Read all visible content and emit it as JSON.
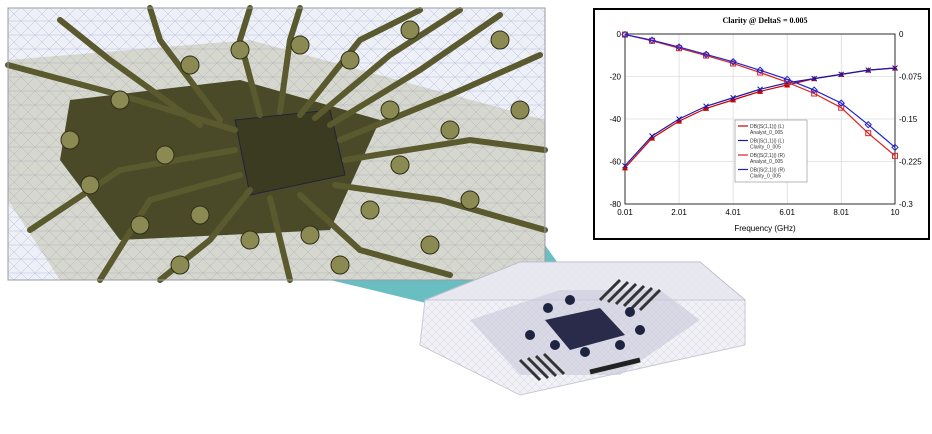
{
  "illustration": {
    "description_icons": [
      "pcb-closeup-view",
      "package-3d-model",
      "magnifier-callout"
    ]
  },
  "chart_data": {
    "type": "line",
    "title": "Clarity @ DeltaS = 0.005",
    "xlabel": "Frequency (GHz)",
    "ylabel": "",
    "y2label": "",
    "xlim": [
      0.01,
      10
    ],
    "ylim": [
      -80,
      0
    ],
    "y2lim": [
      -0.3,
      0
    ],
    "x_ticks": [
      "0.01",
      "2.01",
      "4.01",
      "6.01",
      "8.01",
      "10"
    ],
    "y_ticks": [
      "0",
      "-20",
      "-40",
      "-60",
      "-80"
    ],
    "y2_ticks": [
      "0",
      "-0.075",
      "-0.15",
      "-0.225",
      "-0.3"
    ],
    "grid": true,
    "legend_position": "lower-center",
    "series": [
      {
        "name": "DB(|S(1,1)|) (L)",
        "sub": "Analyst_0_005",
        "color": "#cc0000",
        "marker": "triangle",
        "x": [
          0.01,
          1.01,
          2.01,
          3.01,
          4.01,
          5.01,
          6.01,
          7.01,
          8.01,
          9.01,
          10
        ],
        "values": [
          -63,
          -49,
          -41,
          -35,
          -31,
          -27,
          -24,
          -21,
          -19,
          -17,
          -16
        ]
      },
      {
        "name": "DB(|S(1,1)|) (L)",
        "sub": "Clarity_0_005",
        "color": "#1a1aaa",
        "marker": "x",
        "x": [
          0.01,
          1.01,
          2.01,
          3.01,
          4.01,
          5.01,
          6.01,
          7.01,
          8.01,
          9.01,
          10
        ],
        "values": [
          -62,
          -48,
          -40,
          -34,
          -30,
          -26,
          -23,
          -21,
          -19,
          -17,
          -16
        ]
      },
      {
        "name": "DB(|S(2,1)|) (R)",
        "sub": "Analyst_0_005",
        "color": "#dd2222",
        "marker": "square",
        "x": [
          0.01,
          1.01,
          2.01,
          3.01,
          4.01,
          5.01,
          6.01,
          7.01,
          8.01,
          9.01,
          10
        ],
        "values": [
          -0.001,
          -0.012,
          -0.025,
          -0.038,
          -0.052,
          -0.068,
          -0.085,
          -0.105,
          -0.13,
          -0.175,
          -0.215
        ]
      },
      {
        "name": "DB(|S(2,1)|) (R)",
        "sub": "Clarity_0_005",
        "color": "#2222cc",
        "marker": "diamond",
        "x": [
          0.01,
          1.01,
          2.01,
          3.01,
          4.01,
          5.01,
          6.01,
          7.01,
          8.01,
          9.01,
          10
        ],
        "values": [
          -0.001,
          -0.011,
          -0.023,
          -0.036,
          -0.049,
          -0.064,
          -0.08,
          -0.099,
          -0.122,
          -0.16,
          -0.2
        ]
      }
    ]
  }
}
